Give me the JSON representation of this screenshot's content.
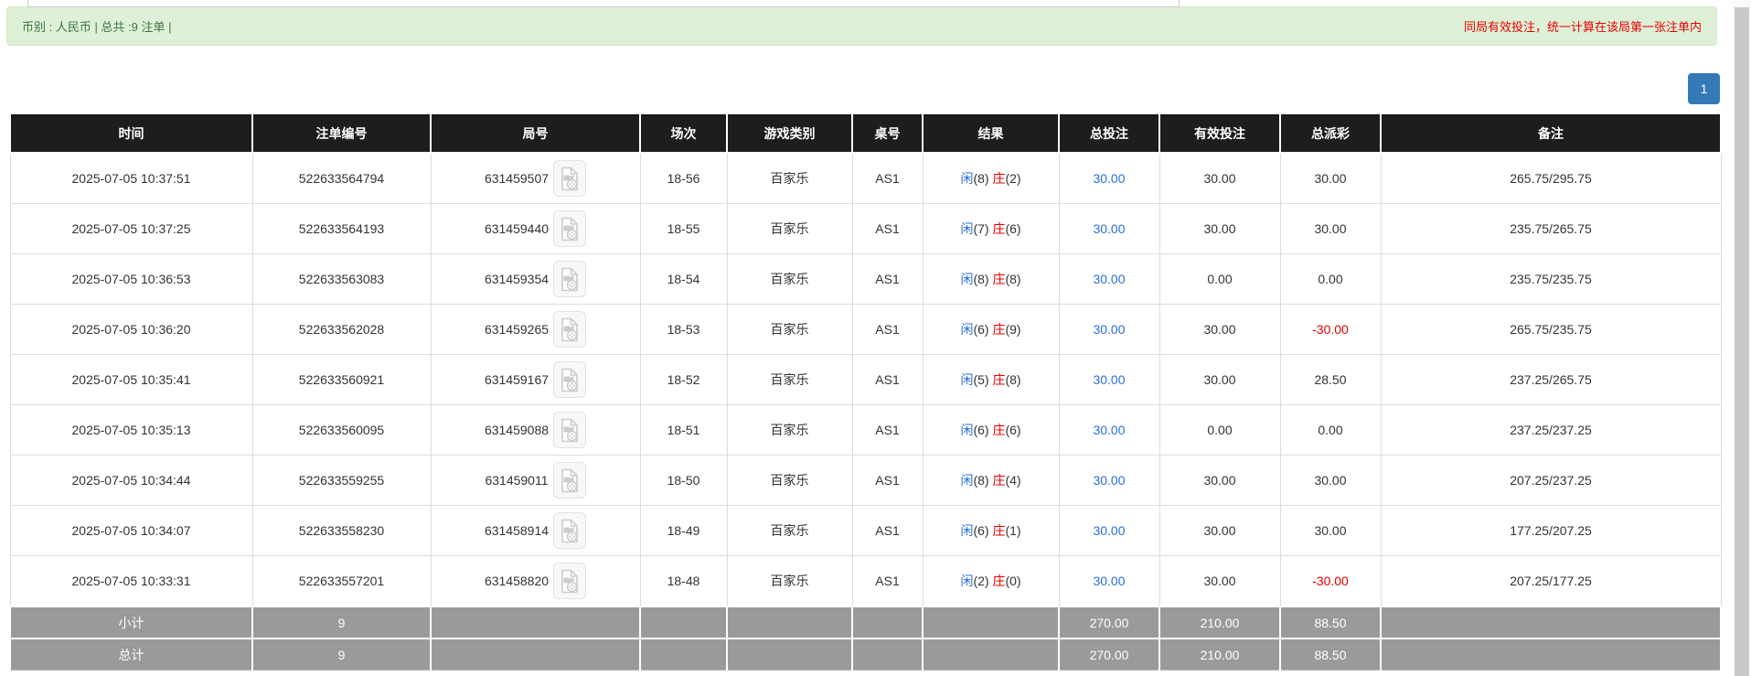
{
  "alert": {
    "left_text": "币别 : 人民币 | 总共 :9 注单 |",
    "right_text": "同局有效投注，统一计算在该局第一张注单内"
  },
  "pagination": {
    "page": "1"
  },
  "icons": {
    "video_replay": "video-replay-icon"
  },
  "colors": {
    "alert_bg": "#dff0d8",
    "alert_border": "#d6e9c6",
    "alert_text": "#3c763d",
    "alert_warning_text": "#e60000",
    "header_bg": "#1d1d1d",
    "footer_bg": "#9a9a9a",
    "link_blue": "#2a6fdb",
    "negative_red": "#e60000",
    "pager_blue": "#337ab7"
  },
  "table": {
    "columns": [
      "时间",
      "注单编号",
      "局号",
      "场次",
      "游戏类别",
      "桌号",
      "结果",
      "总投注",
      "有效投注",
      "总派彩",
      "备注"
    ],
    "rows": [
      {
        "time": "2025-07-05 10:37:51",
        "bet_id": "522633564794",
        "round_id": "631459507",
        "session": "18-56",
        "game": "百家乐",
        "table_no": "AS1",
        "player_label": "闲",
        "player_value": "(8)",
        "banker_label": "庄",
        "banker_value": "(2)",
        "total_bet": "30.00",
        "valid_bet": "30.00",
        "payout": "30.00",
        "remark": "265.75/295.75"
      },
      {
        "time": "2025-07-05 10:37:25",
        "bet_id": "522633564193",
        "round_id": "631459440",
        "session": "18-55",
        "game": "百家乐",
        "table_no": "AS1",
        "player_label": "闲",
        "player_value": "(7)",
        "banker_label": "庄",
        "banker_value": "(6)",
        "total_bet": "30.00",
        "valid_bet": "30.00",
        "payout": "30.00",
        "remark": "235.75/265.75"
      },
      {
        "time": "2025-07-05 10:36:53",
        "bet_id": "522633563083",
        "round_id": "631459354",
        "session": "18-54",
        "game": "百家乐",
        "table_no": "AS1",
        "player_label": "闲",
        "player_value": "(8)",
        "banker_label": "庄",
        "banker_value": "(8)",
        "total_bet": "30.00",
        "valid_bet": "0.00",
        "payout": "0.00",
        "remark": "235.75/235.75"
      },
      {
        "time": "2025-07-05 10:36:20",
        "bet_id": "522633562028",
        "round_id": "631459265",
        "session": "18-53",
        "game": "百家乐",
        "table_no": "AS1",
        "player_label": "闲",
        "player_value": "(6)",
        "banker_label": "庄",
        "banker_value": "(9)",
        "total_bet": "30.00",
        "valid_bet": "30.00",
        "payout": "-30.00",
        "remark": "265.75/235.75"
      },
      {
        "time": "2025-07-05 10:35:41",
        "bet_id": "522633560921",
        "round_id": "631459167",
        "session": "18-52",
        "game": "百家乐",
        "table_no": "AS1",
        "player_label": "闲",
        "player_value": "(5)",
        "banker_label": "庄",
        "banker_value": "(8)",
        "total_bet": "30.00",
        "valid_bet": "30.00",
        "payout": "28.50",
        "remark": "237.25/265.75"
      },
      {
        "time": "2025-07-05 10:35:13",
        "bet_id": "522633560095",
        "round_id": "631459088",
        "session": "18-51",
        "game": "百家乐",
        "table_no": "AS1",
        "player_label": "闲",
        "player_value": "(6)",
        "banker_label": "庄",
        "banker_value": "(6)",
        "total_bet": "30.00",
        "valid_bet": "0.00",
        "payout": "0.00",
        "remark": "237.25/237.25"
      },
      {
        "time": "2025-07-05 10:34:44",
        "bet_id": "522633559255",
        "round_id": "631459011",
        "session": "18-50",
        "game": "百家乐",
        "table_no": "AS1",
        "player_label": "闲",
        "player_value": "(8)",
        "banker_label": "庄",
        "banker_value": "(4)",
        "total_bet": "30.00",
        "valid_bet": "30.00",
        "payout": "30.00",
        "remark": "207.25/237.25"
      },
      {
        "time": "2025-07-05 10:34:07",
        "bet_id": "522633558230",
        "round_id": "631458914",
        "session": "18-49",
        "game": "百家乐",
        "table_no": "AS1",
        "player_label": "闲",
        "player_value": "(6)",
        "banker_label": "庄",
        "banker_value": "(1)",
        "total_bet": "30.00",
        "valid_bet": "30.00",
        "payout": "30.00",
        "remark": "177.25/207.25"
      },
      {
        "time": "2025-07-05 10:33:31",
        "bet_id": "522633557201",
        "round_id": "631458820",
        "session": "18-48",
        "game": "百家乐",
        "table_no": "AS1",
        "player_label": "闲",
        "player_value": "(2)",
        "banker_label": "庄",
        "banker_value": "(0)",
        "total_bet": "30.00",
        "valid_bet": "30.00",
        "payout": "-30.00",
        "remark": "207.25/177.25"
      }
    ],
    "subtotal": {
      "label": "小计",
      "count": "9",
      "total_bet": "270.00",
      "valid_bet": "210.00",
      "payout": "88.50",
      "remark": ""
    },
    "total": {
      "label": "总计",
      "count": "9",
      "total_bet": "270.00",
      "valid_bet": "210.00",
      "payout": "88.50",
      "remark": ""
    }
  }
}
